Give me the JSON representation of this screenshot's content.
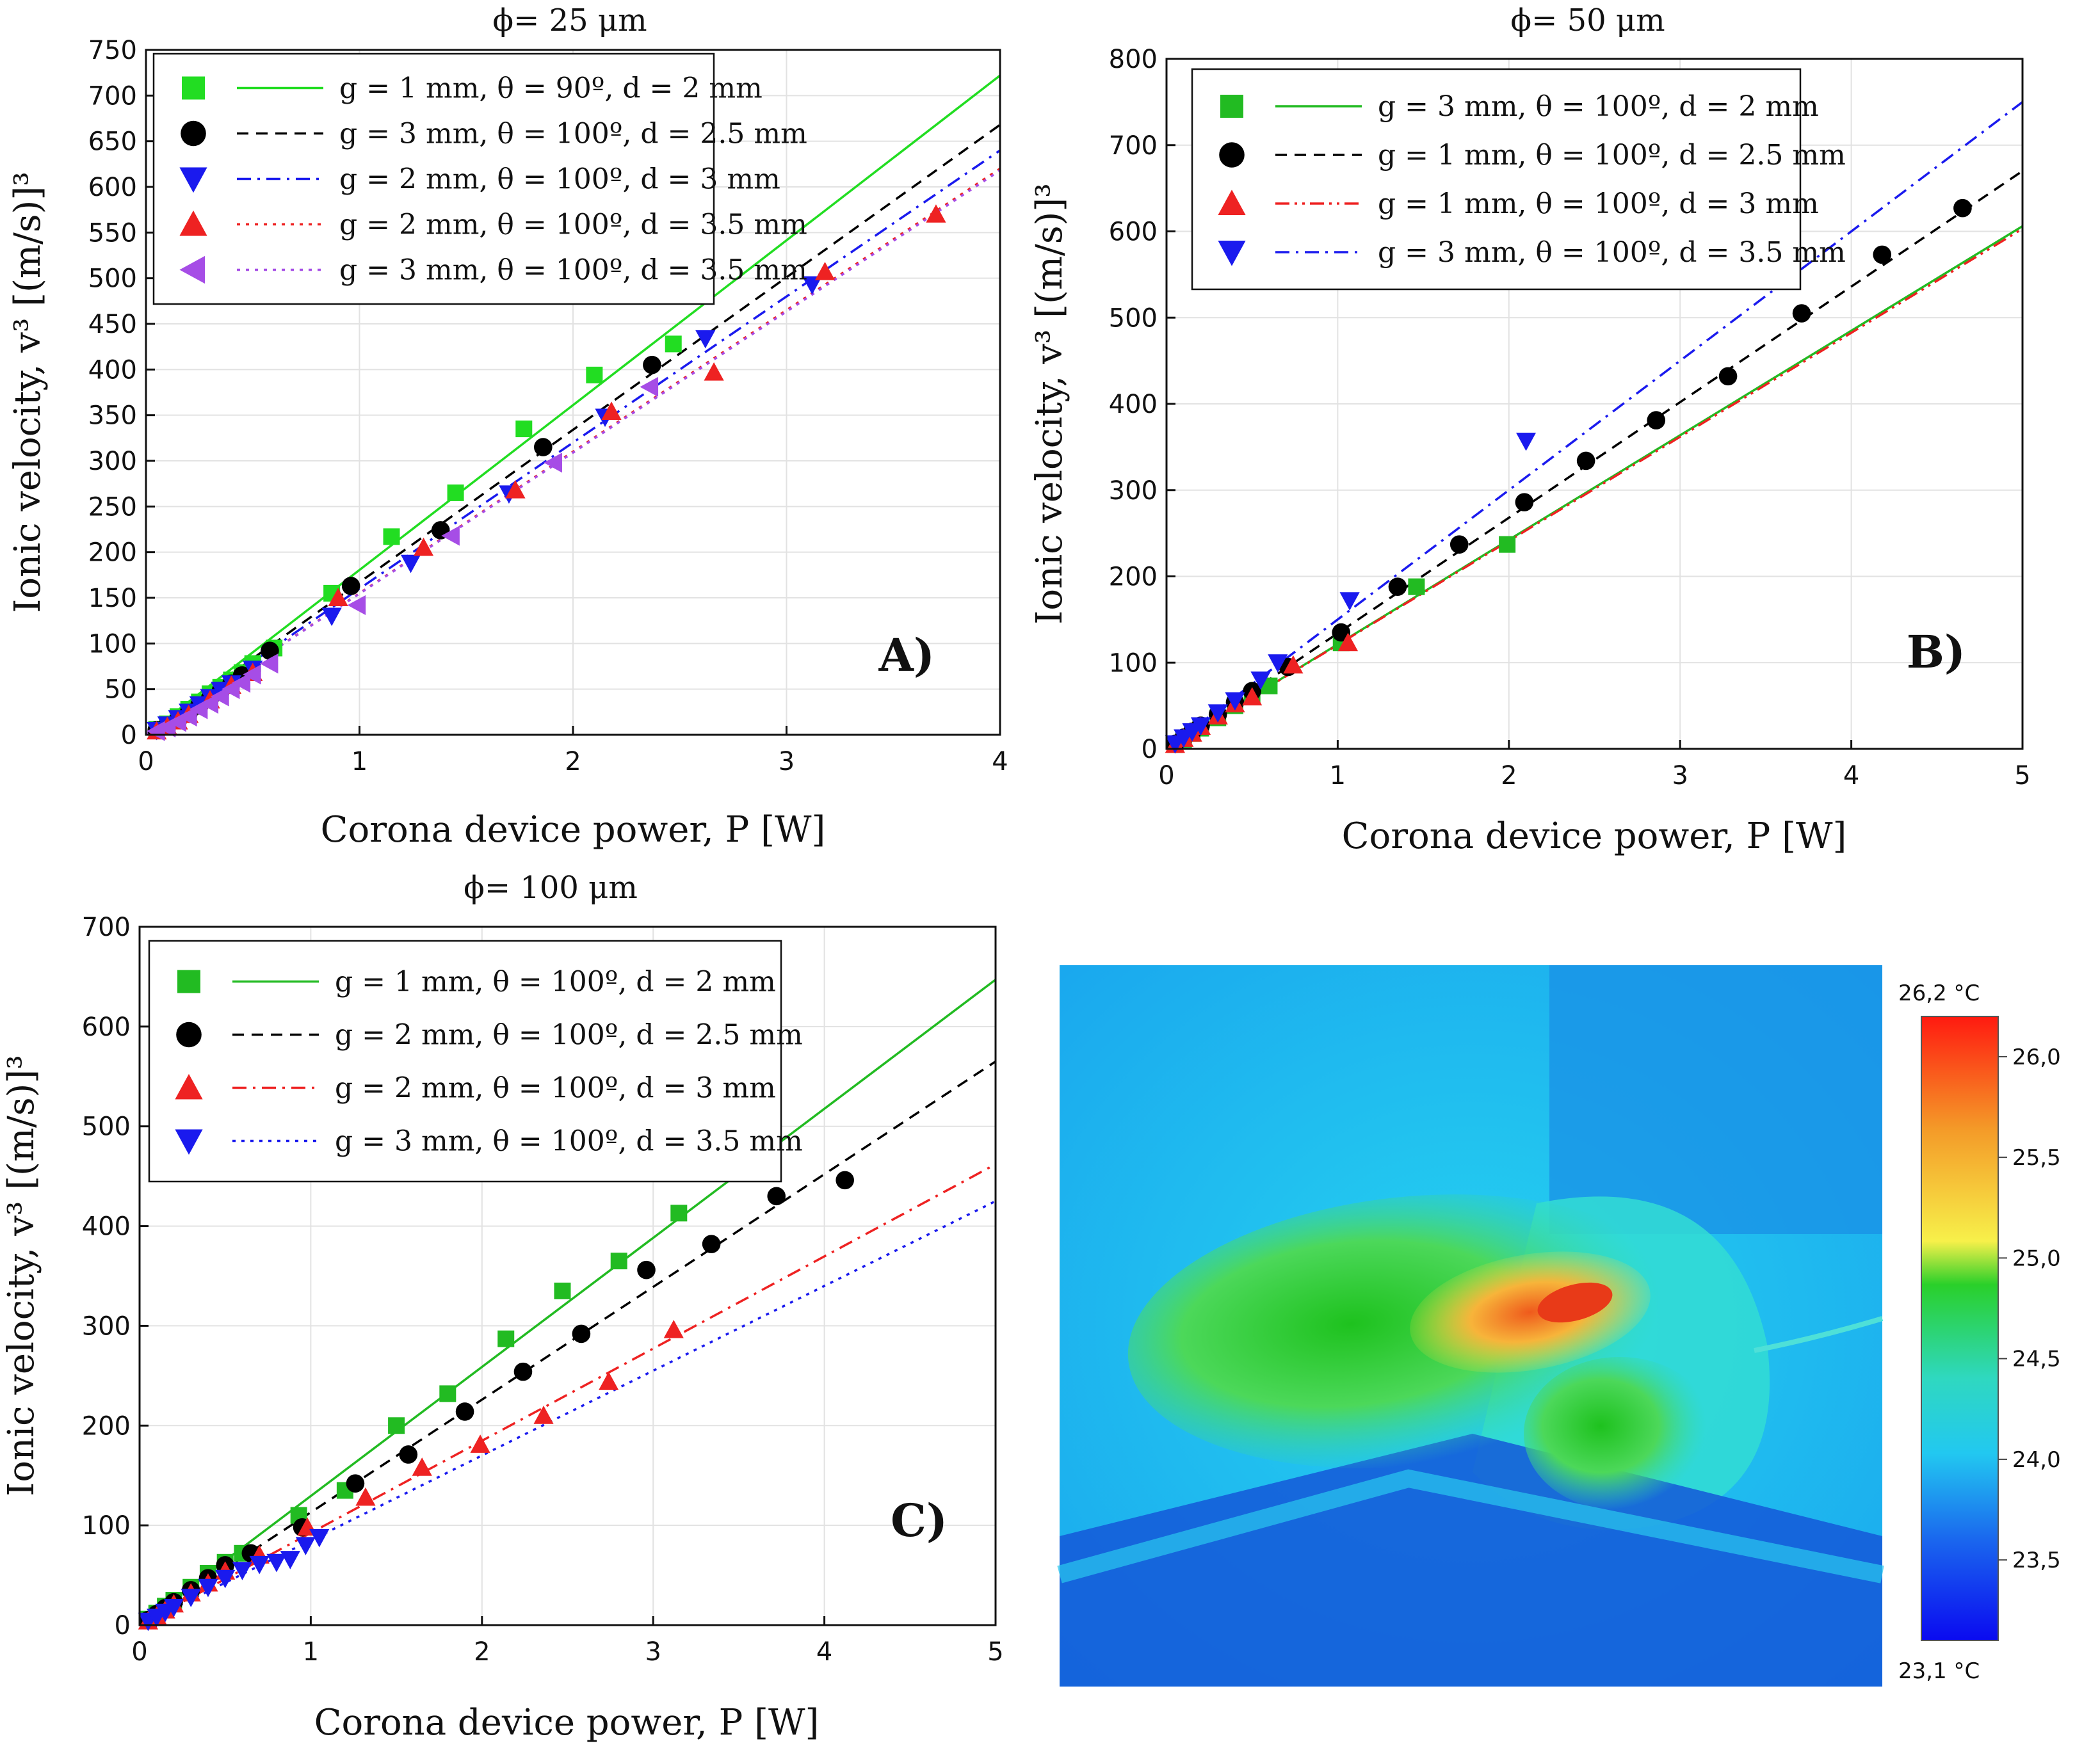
{
  "chart_data": [
    {
      "type": "scatter",
      "title": "ϕ= 25 μm",
      "panel_label": "A)",
      "xlabel": "Corona device power, P [W]",
      "ylabel": "Ionic velocity, v³ [(m/s)]³",
      "xlim": [
        0,
        4
      ],
      "ylim": [
        0,
        750
      ],
      "xticks": [
        0,
        1,
        2,
        3,
        4
      ],
      "yticks": [
        0,
        50,
        100,
        150,
        200,
        250,
        300,
        350,
        400,
        450,
        500,
        550,
        600,
        650,
        700,
        750
      ],
      "grid": true,
      "legend_position": "top-left",
      "series": [
        {
          "name": "g = 1 mm, θ = 90º, d = 2 mm",
          "color": "#22dd22",
          "marker": "square",
          "line": "solid",
          "fit": [
            [
              0,
              0
            ],
            [
              4,
              722
            ]
          ],
          "points": [
            [
              0.05,
              6
            ],
            [
              0.1,
              12
            ],
            [
              0.15,
              20
            ],
            [
              0.2,
              28
            ],
            [
              0.25,
              36
            ],
            [
              0.3,
              45
            ],
            [
              0.35,
              52
            ],
            [
              0.4,
              60
            ],
            [
              0.45,
              68
            ],
            [
              0.5,
              78
            ],
            [
              0.6,
              95
            ],
            [
              0.87,
              155
            ],
            [
              1.15,
              217
            ],
            [
              1.45,
              265
            ],
            [
              1.77,
              335
            ],
            [
              2.1,
              394
            ],
            [
              2.47,
              428
            ]
          ]
        },
        {
          "name": "g = 3 mm, θ = 100º, d = 2.5 mm",
          "color": "#000000",
          "marker": "circle",
          "line": "dashed",
          "fit": [
            [
              0,
              0
            ],
            [
              4,
              668
            ]
          ],
          "points": [
            [
              0.05,
              5
            ],
            [
              0.1,
              10
            ],
            [
              0.15,
              16
            ],
            [
              0.2,
              24
            ],
            [
              0.25,
              32
            ],
            [
              0.3,
              40
            ],
            [
              0.35,
              48
            ],
            [
              0.4,
              56
            ],
            [
              0.45,
              65
            ],
            [
              0.58,
              92
            ],
            [
              0.96,
              163
            ],
            [
              1.38,
              224
            ],
            [
              1.86,
              315
            ],
            [
              2.37,
              405
            ]
          ]
        },
        {
          "name": "g = 2 mm, θ = 100º, d = 3 mm",
          "color": "#1a1aee",
          "marker": "triangle-down",
          "line": "dashdot",
          "fit": [
            [
              0,
              0
            ],
            [
              4,
              640
            ]
          ],
          "points": [
            [
              0.05,
              5
            ],
            [
              0.1,
              11
            ],
            [
              0.15,
              18
            ],
            [
              0.2,
              25
            ],
            [
              0.25,
              33
            ],
            [
              0.3,
              41
            ],
            [
              0.35,
              49
            ],
            [
              0.4,
              56
            ],
            [
              0.5,
              72
            ],
            [
              0.87,
              130
            ],
            [
              1.24,
              188
            ],
            [
              1.7,
              264
            ],
            [
              2.15,
              348
            ],
            [
              2.62,
              434
            ],
            [
              3.12,
              493
            ]
          ]
        },
        {
          "name": "g = 2 mm, θ = 100º, d = 3.5 mm",
          "color": "#ee2222",
          "marker": "triangle-up",
          "line": "dotted",
          "fit": [
            [
              0,
              0
            ],
            [
              4,
              620
            ]
          ],
          "points": [
            [
              0.05,
              4
            ],
            [
              0.1,
              9
            ],
            [
              0.15,
              15
            ],
            [
              0.2,
              22
            ],
            [
              0.3,
              38
            ],
            [
              0.4,
              54
            ],
            [
              0.5,
              68
            ],
            [
              0.9,
              150
            ],
            [
              1.3,
              205
            ],
            [
              1.73,
              268
            ],
            [
              2.18,
              354
            ],
            [
              2.66,
              397
            ],
            [
              3.18,
              507
            ],
            [
              3.7,
              570
            ]
          ]
        },
        {
          "name": "g = 3 mm, θ = 100º, d = 3.5 mm",
          "color": "#a64de6",
          "marker": "triangle-left",
          "line": "dotted",
          "fit": [
            [
              0,
              0
            ],
            [
              4,
              618
            ]
          ],
          "points": [
            [
              0.05,
              4
            ],
            [
              0.1,
              8
            ],
            [
              0.15,
              14
            ],
            [
              0.2,
              20
            ],
            [
              0.25,
              28
            ],
            [
              0.3,
              34
            ],
            [
              0.35,
              42
            ],
            [
              0.4,
              50
            ],
            [
              0.45,
              57
            ],
            [
              0.5,
              66
            ],
            [
              0.58,
              78
            ],
            [
              0.99,
              142
            ],
            [
              1.43,
              218
            ],
            [
              1.91,
              298
            ],
            [
              2.36,
              381
            ]
          ]
        }
      ]
    },
    {
      "type": "scatter",
      "title": "ϕ= 50 μm",
      "panel_label": "B)",
      "xlabel": "Corona device power, P [W]",
      "ylabel": "Ionic velocity, v³ [(m/s)]³",
      "xlim": [
        0,
        5
      ],
      "ylim": [
        0,
        800
      ],
      "xticks": [
        0,
        1,
        2,
        3,
        4,
        5
      ],
      "yticks": [
        0,
        100,
        200,
        300,
        400,
        500,
        600,
        700,
        800
      ],
      "grid": true,
      "legend_position": "top-left",
      "series": [
        {
          "name": "g = 3 mm, θ = 100º, d = 2 mm",
          "color": "#22bb22",
          "marker": "square",
          "line": "solid",
          "fit": [
            [
              0,
              0
            ],
            [
              5,
              606
            ]
          ],
          "points": [
            [
              0.05,
              5
            ],
            [
              0.1,
              11
            ],
            [
              0.15,
              18
            ],
            [
              0.2,
              24
            ],
            [
              0.3,
              36
            ],
            [
              0.4,
              50
            ],
            [
              0.5,
              62
            ],
            [
              0.6,
              73
            ],
            [
              1.02,
              123
            ],
            [
              1.46,
              188
            ],
            [
              1.99,
              237
            ]
          ]
        },
        {
          "name": "g = 1 mm, θ = 100º, d = 2.5 mm",
          "color": "#000000",
          "marker": "circle",
          "line": "dashed",
          "fit": [
            [
              0,
              0
            ],
            [
              5,
              670
            ]
          ],
          "points": [
            [
              0.05,
              6
            ],
            [
              0.1,
              13
            ],
            [
              0.15,
              20
            ],
            [
              0.2,
              27
            ],
            [
              0.3,
              40
            ],
            [
              0.4,
              54
            ],
            [
              0.5,
              67
            ],
            [
              0.71,
              95
            ],
            [
              1.02,
              135
            ],
            [
              1.35,
              188
            ],
            [
              1.71,
              237
            ],
            [
              2.09,
              286
            ],
            [
              2.45,
              334
            ],
            [
              2.86,
              381
            ],
            [
              3.28,
              432
            ],
            [
              3.71,
              505
            ],
            [
              4.18,
              573
            ],
            [
              4.65,
              627
            ]
          ]
        },
        {
          "name": "g = 1 mm, θ = 100º, d = 3 mm",
          "color": "#ee2222",
          "marker": "triangle-up",
          "line": "dashdotdot",
          "fit": [
            [
              0,
              0
            ],
            [
              5,
              603
            ]
          ],
          "points": [
            [
              0.05,
              5
            ],
            [
              0.1,
              12
            ],
            [
              0.15,
              18
            ],
            [
              0.2,
              26
            ],
            [
              0.3,
              38
            ],
            [
              0.4,
              52
            ],
            [
              0.5,
              60
            ],
            [
              0.74,
              97
            ],
            [
              1.06,
              123
            ]
          ]
        },
        {
          "name": "g = 3 mm, θ = 100º, d = 3.5 mm",
          "color": "#1a1aee",
          "marker": "triangle-down",
          "line": "dashdot",
          "fit": [
            [
              0,
              0
            ],
            [
              5,
              750
            ]
          ],
          "points": [
            [
              0.05,
              6
            ],
            [
              0.1,
              13
            ],
            [
              0.15,
              20
            ],
            [
              0.2,
              27
            ],
            [
              0.3,
              42
            ],
            [
              0.4,
              56
            ],
            [
              0.55,
              80
            ],
            [
              0.65,
              100
            ],
            [
              1.07,
              172
            ],
            [
              2.1,
              357
            ]
          ]
        }
      ]
    },
    {
      "type": "scatter",
      "title": "ϕ= 100 μm",
      "panel_label": "C)",
      "xlabel": "Corona device power, P [W]",
      "ylabel": "Ionic velocity, v³ [(m/s)]³",
      "xlim": [
        0,
        5
      ],
      "ylim": [
        0,
        700
      ],
      "xticks": [
        0,
        1,
        2,
        3,
        4,
        5
      ],
      "yticks": [
        0,
        100,
        200,
        300,
        400,
        500,
        600,
        700
      ],
      "grid": true,
      "legend_position": "top-left",
      "series": [
        {
          "name": "g = 1 mm, θ = 100º, d = 2 mm",
          "color": "#22bb22",
          "marker": "square",
          "line": "solid",
          "fit": [
            [
              0,
              0
            ],
            [
              5,
              647
            ]
          ],
          "points": [
            [
              0.05,
              6
            ],
            [
              0.1,
              12
            ],
            [
              0.15,
              19
            ],
            [
              0.2,
              25
            ],
            [
              0.3,
              38
            ],
            [
              0.4,
              52
            ],
            [
              0.5,
              63
            ],
            [
              0.6,
              72
            ],
            [
              0.93,
              110
            ],
            [
              1.2,
              135
            ],
            [
              1.5,
              200
            ],
            [
              1.8,
              232
            ],
            [
              2.14,
              287
            ],
            [
              2.47,
              335
            ],
            [
              2.8,
              365
            ],
            [
              3.15,
              413
            ]
          ]
        },
        {
          "name": "g = 2 mm, θ = 100º, d = 2.5 mm",
          "color": "#000000",
          "marker": "circle",
          "line": "dashed",
          "fit": [
            [
              0,
              0
            ],
            [
              5,
              565
            ]
          ],
          "points": [
            [
              0.05,
              5
            ],
            [
              0.1,
              11
            ],
            [
              0.15,
              17
            ],
            [
              0.2,
              23
            ],
            [
              0.3,
              35
            ],
            [
              0.4,
              47
            ],
            [
              0.5,
              60
            ],
            [
              0.65,
              72
            ],
            [
              0.95,
              98
            ],
            [
              1.26,
              142
            ],
            [
              1.57,
              171
            ],
            [
              1.9,
              214
            ],
            [
              2.24,
              254
            ],
            [
              2.58,
              292
            ],
            [
              2.96,
              356
            ],
            [
              3.34,
              382
            ],
            [
              3.72,
              430
            ],
            [
              4.12,
              446
            ]
          ]
        },
        {
          "name": "g = 2 mm, θ = 100º, d = 3 mm",
          "color": "#ee2222",
          "marker": "triangle-up",
          "line": "dashdot",
          "fit": [
            [
              0,
              0
            ],
            [
              5,
              462
            ]
          ],
          "points": [
            [
              0.05,
              4
            ],
            [
              0.1,
              9
            ],
            [
              0.15,
              15
            ],
            [
              0.2,
              21
            ],
            [
              0.3,
              32
            ],
            [
              0.4,
              42
            ],
            [
              0.5,
              54
            ],
            [
              0.7,
              70
            ],
            [
              0.98,
              98
            ],
            [
              1.32,
              128
            ],
            [
              1.65,
              158
            ],
            [
              1.99,
              181
            ],
            [
              2.36,
              210
            ],
            [
              2.74,
              244
            ],
            [
              3.12,
              296
            ]
          ]
        },
        {
          "name": "g = 3 mm, θ = 100º, d = 3.5 mm",
          "color": "#1a1aee",
          "marker": "triangle-down",
          "line": "dotted",
          "fit": [
            [
              0,
              0
            ],
            [
              5,
              425
            ]
          ],
          "points": [
            [
              0.05,
              4
            ],
            [
              0.1,
              8
            ],
            [
              0.15,
              13
            ],
            [
              0.2,
              18
            ],
            [
              0.3,
              28
            ],
            [
              0.4,
              38
            ],
            [
              0.5,
              47
            ],
            [
              0.6,
              55
            ],
            [
              0.7,
              61
            ],
            [
              0.8,
              63
            ],
            [
              0.88,
              66
            ],
            [
              0.97,
              80
            ],
            [
              1.05,
              88
            ]
          ]
        }
      ]
    }
  ],
  "thermal_image": {
    "scale_max_label": "26,2 °C",
    "scale_min_label": "23,1 °C",
    "scale_ticks": [
      "26,0",
      "25,5",
      "25,0",
      "24,5",
      "24,0",
      "23,5"
    ],
    "scale_tick_values": [
      26.0,
      25.5,
      25.0,
      24.5,
      24.0,
      23.5
    ],
    "scale_min": 23.1,
    "scale_max": 26.2
  }
}
